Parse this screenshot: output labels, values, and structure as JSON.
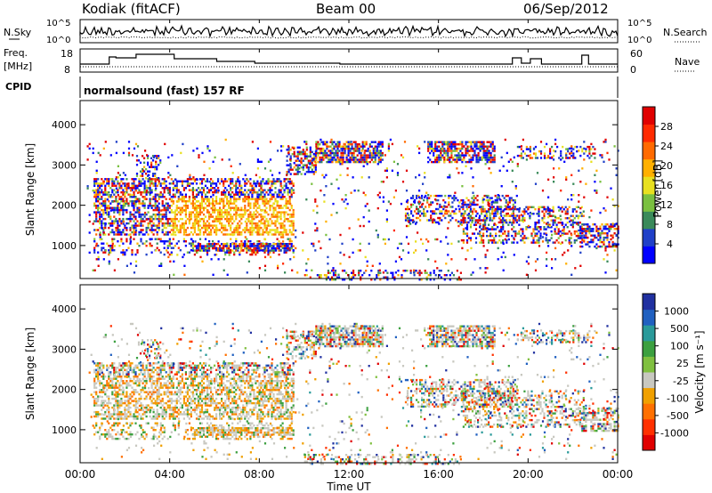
{
  "header": {
    "station": "Kodiak (fitACF)",
    "beam": "Beam 00",
    "date": "06/Sep/2012"
  },
  "noise_panel": {
    "left_label": "N.Sky",
    "right_label": "N.Search",
    "left_ticks": [
      "10^5",
      "10^0"
    ],
    "right_ticks": [
      "10^5",
      "10^0"
    ]
  },
  "freq_panel": {
    "left_label_1": "Freq.",
    "left_label_2": "[MHz]",
    "right_label": "Nave",
    "left_ticks": [
      "18",
      "8"
    ],
    "right_ticks": [
      "60",
      "0"
    ]
  },
  "cpid_panel": {
    "label": "CPID",
    "text": "normalsound (fast) 157 RF"
  },
  "xaxis": {
    "label": "Time UT",
    "ticks": [
      "00:00",
      "04:00",
      "08:00",
      "12:00",
      "16:00",
      "20:00",
      "00:00"
    ]
  },
  "power_panel": {
    "ylabel": "Slant Range [km]",
    "yticks": [
      "4000",
      "3000",
      "2000",
      "1000"
    ],
    "cbar_label": "Power [dB]",
    "cbar_ticks": [
      "28",
      "24",
      "20",
      "16",
      "12",
      "8",
      "4"
    ],
    "cbar_colors": [
      "#0000ff",
      "#2040c8",
      "#3a8a5a",
      "#7ac040",
      "#e8e020",
      "#ffb000",
      "#ff6a00",
      "#ff2a00",
      "#e00000"
    ]
  },
  "velocity_panel": {
    "ylabel": "Slant Range [km]",
    "yticks": [
      "4000",
      "3000",
      "2000",
      "1000"
    ],
    "cbar_label": "Velocity [m s⁻¹]",
    "cbar_ticks": [
      "1000",
      "500",
      "100",
      "25",
      "-25",
      "-100",
      "-500",
      "-1000"
    ],
    "cbar_colors": [
      "#2030a0",
      "#2060c0",
      "#2a9a9a",
      "#3ca040",
      "#80c040",
      "#c8c8c0",
      "#f0a000",
      "#ff7000",
      "#ff3000",
      "#e00000"
    ]
  },
  "chart_data": [
    {
      "type": "heatmap",
      "title": "Power",
      "ylabel": "Slant Range [km]",
      "xlabel": "Time UT",
      "x_range": [
        "00:00",
        "24:00"
      ],
      "ylim": [
        180,
        4600
      ],
      "colorbar_label": "Power [dB]",
      "colorbar_range": [
        0,
        32
      ]
    },
    {
      "type": "heatmap",
      "title": "Velocity",
      "ylabel": "Slant Range [km]",
      "xlabel": "Time UT",
      "x_range": [
        "00:00",
        "24:00"
      ],
      "ylim": [
        180,
        4600
      ],
      "colorbar_label": "Velocity [m s⁻¹]",
      "colorbar_range": [
        -1000,
        1000
      ]
    }
  ]
}
